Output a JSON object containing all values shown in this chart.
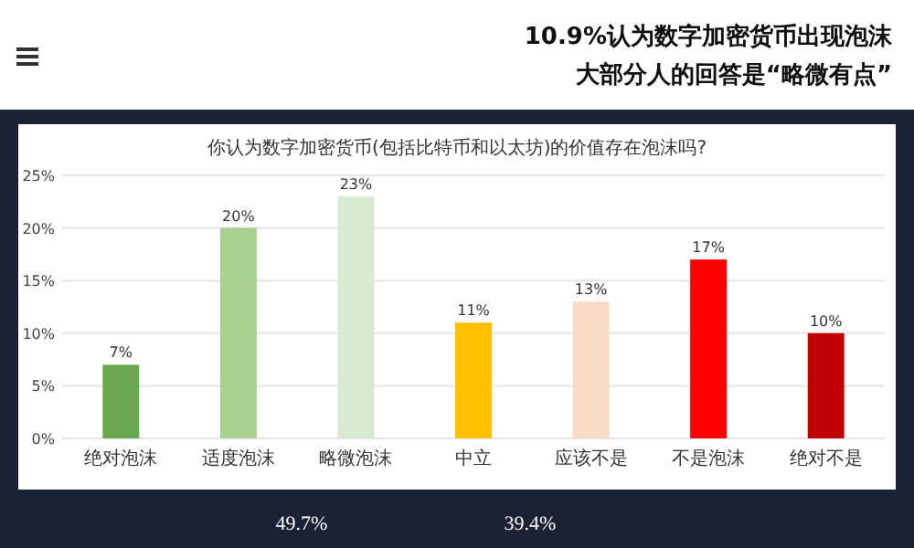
{
  "chart_data": {
    "type": "bar",
    "title": "你认为数字加密货币(包括比特币和以太坊)的价值存在泡沫吗?",
    "categories": [
      "绝对泡沫",
      "适度泡沫",
      "略微泡沫",
      "中立",
      "应该不是",
      "不是泡沫",
      "绝对不是"
    ],
    "values": [
      7,
      20,
      23,
      11,
      13,
      17,
      10
    ],
    "colors": [
      "#6aa84f",
      "#a9d08e",
      "#d9ead3",
      "#ffc000",
      "#f8dcc8",
      "#ff0000",
      "#c00000"
    ],
    "value_labels": [
      "7%",
      "20%",
      "23%",
      "11%",
      "13%",
      "17%",
      "10%"
    ],
    "ylim": [
      0,
      25
    ],
    "yticks": [
      {
        "value": 0,
        "label": "0%"
      },
      {
        "value": 5,
        "label": "5%"
      },
      {
        "value": 10,
        "label": "10%"
      },
      {
        "value": 15,
        "label": "15%"
      },
      {
        "value": 20,
        "label": "20%"
      },
      {
        "value": 25,
        "label": "25%"
      }
    ],
    "grid": "y",
    "annotations": [
      "10.9%认为数字加密货币出现泡沫",
      "大部分人的回答是“略微有点”",
      "49.7%",
      "39.4%"
    ]
  }
}
